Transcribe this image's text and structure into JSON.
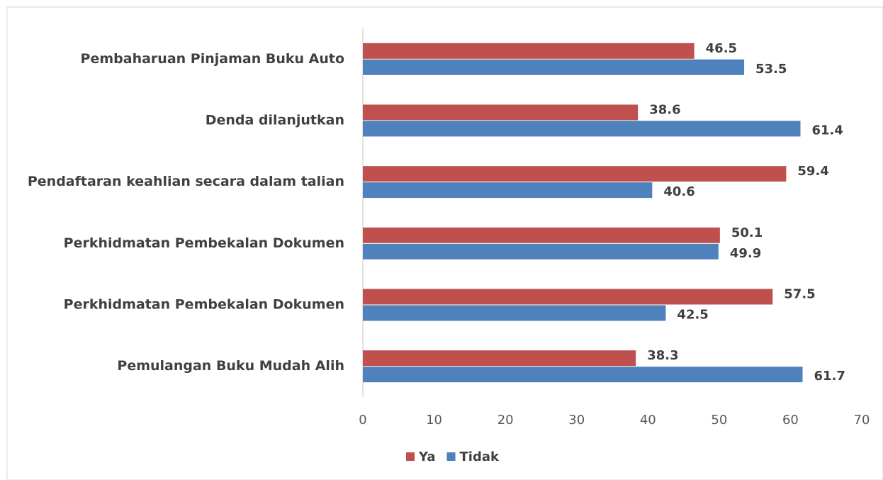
{
  "chart_data": {
    "type": "hbar",
    "categories": [
      "Pembaharuan Pinjaman Buku Auto",
      "Denda dilanjutkan",
      "Pendaftaran keahlian secara dalam talian",
      "Perkhidmatan Pembekalan Dokumen",
      "Perkhidmatan Pembekalan Dokumen",
      "Pemulangan Buku Mudah Alih"
    ],
    "series": [
      {
        "name": "Ya",
        "color": "#c0504d",
        "values": [
          46.5,
          38.6,
          59.4,
          50.1,
          57.5,
          38.3
        ]
      },
      {
        "name": "Tidak",
        "color": "#4f81bd",
        "values": [
          53.5,
          61.4,
          40.6,
          49.9,
          42.5,
          61.7
        ]
      }
    ],
    "xlim": [
      0,
      70
    ],
    "xticks": [
      0,
      10,
      20,
      30,
      40,
      50,
      60,
      70
    ],
    "grid": false,
    "legend": "bottom"
  }
}
